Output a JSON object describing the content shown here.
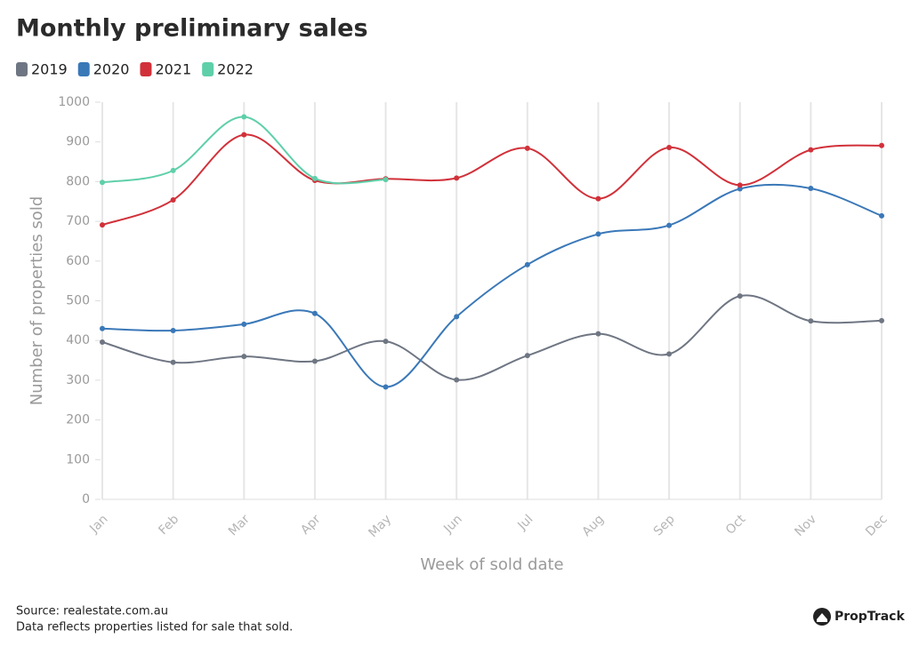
{
  "chart_data": {
    "type": "line",
    "title": "Monthly preliminary sales",
    "y_label": "Number of properties sold",
    "x_label": "Week of sold date",
    "categories": [
      "Jan",
      "Feb",
      "Mar",
      "Apr",
      "May",
      "Jun",
      "Jul",
      "Aug",
      "Sep",
      "Oct",
      "Nov",
      "Dec"
    ],
    "series": [
      {
        "name": "2019",
        "color": "#6f7683",
        "values": [
          396,
          345,
          360,
          348,
          398,
          301,
          362,
          417,
          366,
          512,
          449,
          450
        ]
      },
      {
        "name": "2020",
        "color": "#3a78b8",
        "values": [
          430,
          425,
          441,
          468,
          283,
          460,
          591,
          668,
          690,
          782,
          783,
          714
        ]
      },
      {
        "name": "2021",
        "color": "#d1313a",
        "values": [
          691,
          754,
          918,
          803,
          807,
          809,
          884,
          757,
          886,
          791,
          880,
          891
        ]
      },
      {
        "name": "2022",
        "color": "#5fcfaa",
        "values": [
          798,
          828,
          963,
          808,
          805,
          null,
          null,
          null,
          null,
          null,
          null,
          null
        ]
      }
    ],
    "ylim": [
      0,
      1000
    ],
    "yticks": [
      0,
      100,
      200,
      300,
      400,
      500,
      600,
      700,
      800,
      900,
      1000
    ],
    "grid": true,
    "legend": "top-left",
    "source": "Source: realestate.com.au",
    "note": "Data reflects properties listed for sale that sold.",
    "brand": "PropTrack"
  }
}
